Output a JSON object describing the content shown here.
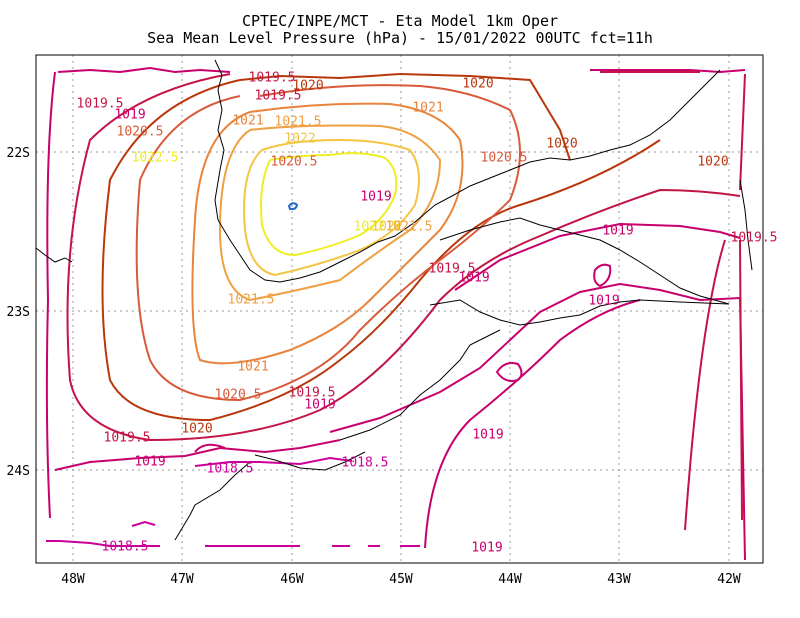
{
  "header": {
    "title": "CPTEC/INPE/MCT -  Eta Model 1km Oper",
    "subtitle": "Sea Mean Level Pressure (hPa) - 15/01/2022 00UTC fct=11h"
  },
  "axes": {
    "lon_ticks": [
      "48W",
      "47W",
      "46W",
      "45W",
      "44W",
      "43W",
      "42W"
    ],
    "lat_ticks": [
      "22S",
      "23S",
      "24S"
    ]
  },
  "colors": {
    "1018.5": "#cc0099",
    "1019": "#c8006e",
    "1019.5": "#c31445",
    "1020": "#b9370c",
    "1020.5": "#d85a3a",
    "1021": "#e8843c",
    "1021.5": "#efa042",
    "1022": "#f4c542",
    "1022.5": "#eeee20",
    "high": "#2266cc",
    "coast": "#000000"
  },
  "contour_labels": [
    {
      "text": "1019.5",
      "level": "1019.5"
    },
    {
      "text": "1020",
      "level": "1020"
    },
    {
      "text": "1020",
      "level": "1020"
    },
    {
      "text": "1019.5",
      "level": "1019.5"
    },
    {
      "text": "1019",
      "level": "1019"
    },
    {
      "text": "1019.5",
      "level": "1019.5"
    },
    {
      "text": "1020.5",
      "level": "1020.5"
    },
    {
      "text": "1021",
      "level": "1021"
    },
    {
      "text": "1021",
      "level": "1021"
    },
    {
      "text": "1021.5",
      "level": "1021.5"
    },
    {
      "text": "1022",
      "level": "1022"
    },
    {
      "text": "1020",
      "level": "1020"
    },
    {
      "text": "1020.5",
      "level": "1020.5"
    },
    {
      "text": "1022.5",
      "level": "1022.5"
    },
    {
      "text": "1020.5",
      "level": "1020.5"
    },
    {
      "text": "1020",
      "level": "1020"
    },
    {
      "text": "1019",
      "level": "1019"
    },
    {
      "text": "1019.5",
      "level": "1019.5"
    },
    {
      "text": "1022.5",
      "level": "1022.5"
    },
    {
      "text": "1022",
      "level": "1022"
    },
    {
      "text": "1021.5",
      "level": "1021.5"
    },
    {
      "text": "1019",
      "level": "1019"
    },
    {
      "text": "1019.5",
      "level": "1019.5"
    },
    {
      "text": "1019",
      "level": "1019"
    },
    {
      "text": "1021.5",
      "level": "1021.5"
    },
    {
      "text": "1019",
      "level": "1019"
    },
    {
      "text": "1021",
      "level": "1021"
    },
    {
      "text": "1020.5",
      "level": "1020.5"
    },
    {
      "text": "1019.5",
      "level": "1019.5"
    },
    {
      "text": "1019",
      "level": "1019"
    },
    {
      "text": "1020",
      "level": "1020"
    },
    {
      "text": "1019.5",
      "level": "1019.5"
    },
    {
      "text": "1019",
      "level": "1019"
    },
    {
      "text": "1019",
      "level": "1019"
    },
    {
      "text": "1018.5",
      "level": "1018.5"
    },
    {
      "text": "1018.5",
      "level": "1018.5"
    },
    {
      "text": "1018.5",
      "level": "1018.5"
    },
    {
      "text": "1019",
      "level": "1019"
    }
  ]
}
